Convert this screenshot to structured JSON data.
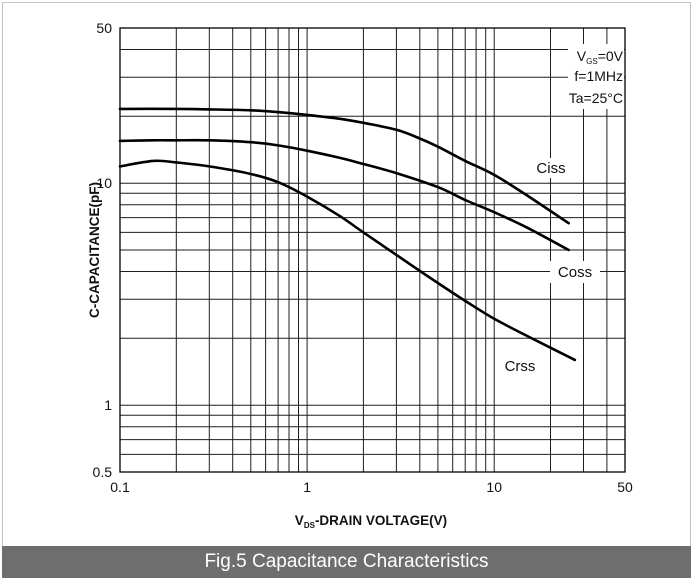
{
  "figure": {
    "caption": "Fig.5 Capacitance Characteristics",
    "band_color": "#6e6e6e",
    "caption_color": "#ffffff"
  },
  "chart_data": {
    "type": "line",
    "xscale": "log",
    "yscale": "log",
    "xlim": [
      0.1,
      50
    ],
    "ylim": [
      0.5,
      50
    ],
    "grid": true,
    "legend": "none (inline series labels)",
    "line_color": "#000000",
    "xlabel": {
      "symbol": "V",
      "sub": "DS",
      "text": "-DRAIN VOLTAGE(V)"
    },
    "ylabel": "C-CAPACITANCE(pF)",
    "xticks": [
      {
        "value": 0.1,
        "label": "0.1"
      },
      {
        "value": 1,
        "label": "1"
      },
      {
        "value": 10,
        "label": "10"
      },
      {
        "value": 50,
        "label": "50"
      }
    ],
    "yticks": [
      {
        "value": 50,
        "label": "50"
      },
      {
        "value": 10,
        "label": "10"
      },
      {
        "value": 1,
        "label": "1"
      },
      {
        "value": 0.5,
        "label": "0.5"
      }
    ],
    "conditions": [
      {
        "symbol": "V",
        "sub": "GS",
        "text": "=0V"
      },
      {
        "text": "f=1MHz"
      },
      {
        "text": "Ta=25°C"
      }
    ],
    "series": [
      {
        "name": "Ciss",
        "x": [
          0.1,
          0.2,
          0.3,
          0.5,
          0.7,
          1,
          1.5,
          2,
          3,
          4,
          5,
          7,
          10,
          15,
          25
        ],
        "y": [
          21.6,
          21.6,
          21.5,
          21.3,
          20.9,
          20.3,
          19.5,
          18.7,
          17.4,
          15.9,
          14.6,
          12.6,
          10.9,
          8.8,
          6.6
        ]
      },
      {
        "name": "Coss",
        "x": [
          0.1,
          0.15,
          0.2,
          0.3,
          0.5,
          0.7,
          1,
          1.5,
          2,
          3,
          5,
          7,
          10,
          15,
          25
        ],
        "y": [
          15.5,
          15.6,
          15.6,
          15.6,
          15.3,
          14.8,
          14.0,
          13.0,
          12.2,
          11.1,
          9.6,
          8.4,
          7.4,
          6.3,
          5.0
        ]
      },
      {
        "name": "Crss",
        "x": [
          0.1,
          0.15,
          0.2,
          0.3,
          0.5,
          0.7,
          1,
          1.5,
          2,
          3,
          5,
          7,
          10,
          15,
          27
        ],
        "y": [
          11.9,
          12.6,
          12.4,
          11.9,
          11.0,
          10.1,
          8.7,
          7.1,
          6.0,
          4.75,
          3.55,
          2.95,
          2.45,
          2.05,
          1.6
        ]
      }
    ]
  }
}
